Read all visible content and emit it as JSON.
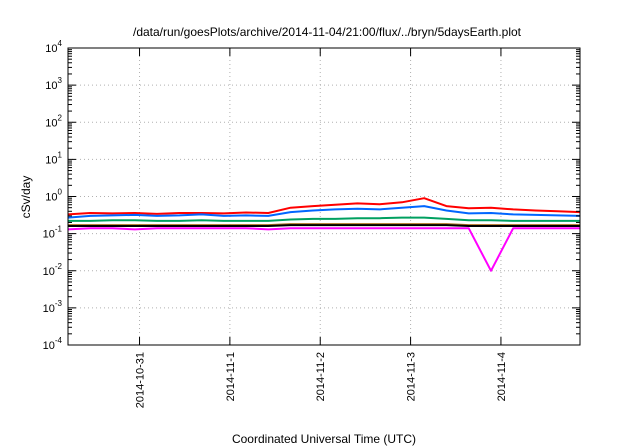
{
  "chart_data": {
    "type": "line",
    "title": "/data/run/goesPlots/archive/2014-11-04/21:00/flux/../bryn/5daysEarth.plot",
    "xlabel": "Coordinated Universal Time (UTC)",
    "ylabel": "cSv/day",
    "y_scale": "log",
    "ylim_exponents": [
      -4,
      4
    ],
    "y_tick_labels": [
      {
        "base": "10",
        "exp": "-4"
      },
      {
        "base": "10",
        "exp": "-3"
      },
      {
        "base": "10",
        "exp": "-2"
      },
      {
        "base": "10",
        "exp": "-1"
      },
      {
        "base": "10",
        "exp": "0"
      },
      {
        "base": "10",
        "exp": "1"
      },
      {
        "base": "10",
        "exp": "2"
      },
      {
        "base": "10",
        "exp": "3"
      },
      {
        "base": "10",
        "exp": "4"
      }
    ],
    "x_axis": {
      "start": "2014-10-30T05:00",
      "end": "2014-11-04T21:00",
      "tick_labels": [
        "2014-10-31",
        "2014-11-1",
        "2014-11-2",
        "2014-11-3",
        "2014-11-4"
      ]
    },
    "grid": true,
    "series": [
      {
        "color": "#ff0000",
        "values": [
          0.33,
          0.36,
          0.35,
          0.36,
          0.34,
          0.36,
          0.36,
          0.35,
          0.37,
          0.36,
          0.5,
          0.55,
          0.6,
          0.65,
          0.62,
          0.7,
          0.9,
          0.55,
          0.48,
          0.5,
          0.45,
          0.42,
          0.4,
          0.38
        ]
      },
      {
        "color": "#0066ff",
        "values": [
          0.27,
          0.3,
          0.31,
          0.32,
          0.3,
          0.31,
          0.33,
          0.3,
          0.31,
          0.3,
          0.38,
          0.42,
          0.45,
          0.47,
          0.45,
          0.5,
          0.55,
          0.42,
          0.35,
          0.36,
          0.33,
          0.32,
          0.31,
          0.3
        ]
      },
      {
        "color": "#00a060",
        "values": [
          0.22,
          0.22,
          0.23,
          0.23,
          0.22,
          0.22,
          0.23,
          0.22,
          0.22,
          0.22,
          0.24,
          0.25,
          0.25,
          0.26,
          0.26,
          0.27,
          0.27,
          0.25,
          0.23,
          0.23,
          0.22,
          0.22,
          0.22,
          0.22
        ]
      },
      {
        "color": "#b07020",
        "values": [
          0.17,
          0.17,
          0.17,
          0.17,
          0.17,
          0.17,
          0.17,
          0.17,
          0.17,
          0.17,
          0.18,
          0.18,
          0.18,
          0.18,
          0.18,
          0.18,
          0.18,
          0.18,
          0.17,
          0.17,
          0.17,
          0.17,
          0.17,
          0.17
        ]
      },
      {
        "color": "#000000",
        "values": [
          0.16,
          0.16,
          0.16,
          0.16,
          0.16,
          0.16,
          0.16,
          0.16,
          0.16,
          0.16,
          0.17,
          0.17,
          0.17,
          0.17,
          0.17,
          0.17,
          0.17,
          0.17,
          0.16,
          0.16,
          0.16,
          0.16,
          0.16,
          0.16
        ]
      },
      {
        "color": "#ff00ff",
        "values": [
          0.13,
          0.14,
          0.14,
          0.13,
          0.14,
          0.14,
          0.14,
          0.14,
          0.14,
          0.13,
          0.14,
          0.14,
          0.14,
          0.14,
          0.14,
          0.14,
          0.14,
          0.14,
          0.14,
          0.01,
          0.14,
          0.14,
          0.14,
          0.14
        ]
      }
    ]
  }
}
